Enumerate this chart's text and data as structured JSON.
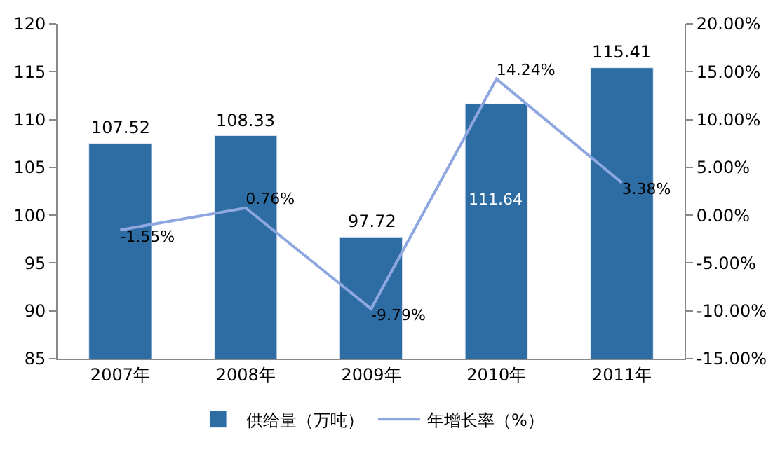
{
  "chart_data": {
    "type": "bar",
    "categories": [
      "2007年",
      "2008年",
      "2009年",
      "2010年",
      "2011年"
    ],
    "series": [
      {
        "name": "供给量（万吨）",
        "color": "#2e6da4",
        "values": [
          107.52,
          108.33,
          97.72,
          111.64,
          115.41
        ],
        "value_labels": [
          "107.52",
          "108.33",
          "97.72",
          "111.64",
          "115.41"
        ]
      },
      {
        "name": "年增长率（%）",
        "type": "line",
        "axis": "y2",
        "color": "#8ea7e0",
        "values": [
          -1.55,
          0.76,
          -9.79,
          14.24,
          3.38
        ],
        "value_labels": [
          "-1.55%",
          "0.76%",
          "-9.79%",
          "14.24%",
          "3.38%"
        ]
      }
    ],
    "ylim": [
      85,
      120
    ],
    "yticks": [
      85,
      90,
      95,
      100,
      105,
      110,
      115,
      120
    ],
    "y2lim": [
      -15,
      20
    ],
    "y2ticks": [
      {
        "value": -15,
        "label": "-15.00%"
      },
      {
        "value": -10,
        "label": "-10.00%"
      },
      {
        "value": -5,
        "label": "-5.00%"
      },
      {
        "value": 0,
        "label": "0.00%"
      },
      {
        "value": 5,
        "label": "5.00%"
      },
      {
        "value": 10,
        "label": "10.00%"
      },
      {
        "value": 15,
        "label": "15.00%"
      },
      {
        "value": 20,
        "label": "20.00%"
      }
    ],
    "legend": "bottom",
    "marker": "none",
    "line_style": "solid"
  }
}
